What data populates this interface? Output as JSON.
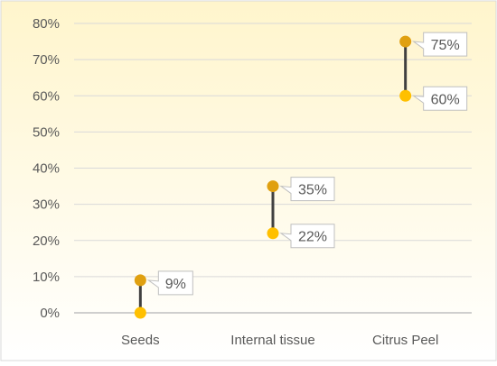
{
  "chart_data": {
    "type": "dumbbell",
    "categories": [
      "Seeds",
      "Internal tissue",
      "Citrus Peel"
    ],
    "series": [
      {
        "values": [
          0,
          22,
          60
        ]
      },
      {
        "values": [
          9,
          35,
          75
        ]
      }
    ],
    "data_labels": [
      "9%",
      "22%",
      "35%",
      "60%",
      "75%"
    ],
    "y_tick_labels": [
      "0%",
      "10%",
      "20%",
      "30%",
      "40%",
      "50%",
      "60%",
      "70%",
      "80%"
    ],
    "ylim": [
      0,
      80
    ],
    "y_unit": "%",
    "grid": true,
    "legend": "none",
    "colors": {
      "background_top": "#fff5cc",
      "background_bottom": "#ffffff",
      "low_marker": "#ffc000",
      "high_marker": "#e0a010",
      "connector": "#404040",
      "gridline": "#d9d9d9",
      "axis": "#bfbfbf",
      "label_border": "#bfbfbf",
      "text": "#595959"
    }
  }
}
